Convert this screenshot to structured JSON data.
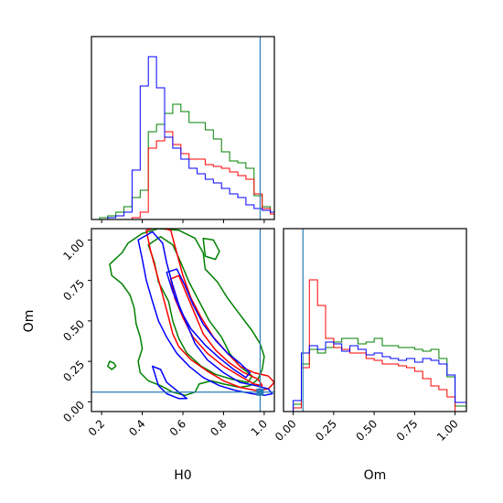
{
  "chart_data": {
    "type": "corner",
    "parameters": [
      "H0",
      "Om"
    ],
    "colors": {
      "green": "#008000",
      "red": "#ff0000",
      "blue": "#0000ff",
      "truth": "#2a7bb5"
    },
    "truth": {
      "H0": 0.98,
      "Om": 0.06
    },
    "h0_axis": {
      "xlabel": "H0",
      "xlim": [
        0.15,
        1.05
      ],
      "ticks": [
        0.2,
        0.4,
        0.6,
        0.8,
        1.0
      ],
      "tick_labels": [
        "0.2",
        "0.4",
        "0.6",
        "0.8",
        "1.0"
      ]
    },
    "om_axis": {
      "label": "Om",
      "lim": [
        -0.06,
        1.07
      ],
      "ticks": [
        0.0,
        0.25,
        0.5,
        0.75,
        1.0
      ],
      "tick_labels": [
        "0.00",
        "0.25",
        "0.50",
        "0.75",
        "1.00"
      ]
    },
    "hist_H0": {
      "bin_edges": [
        0.15,
        0.19,
        0.23,
        0.27,
        0.31,
        0.35,
        0.39,
        0.43,
        0.47,
        0.51,
        0.55,
        0.59,
        0.63,
        0.67,
        0.71,
        0.75,
        0.79,
        0.83,
        0.87,
        0.91,
        0.95,
        0.99,
        1.03,
        1.05
      ],
      "ymax": 1.0,
      "series": [
        {
          "name": "",
          "color": "#008000",
          "values": [
            0,
            0.01,
            0.02,
            0.04,
            0.07,
            0.12,
            0.16,
            0.48,
            0.52,
            0.58,
            0.63,
            0.59,
            0.53,
            0.53,
            0.49,
            0.44,
            0.37,
            0.32,
            0.31,
            0.28,
            0.13,
            0.07,
            0.04
          ]
        },
        {
          "name": "",
          "color": "#ff0000",
          "values": [
            0,
            0,
            0,
            0,
            0,
            0.01,
            0.04,
            0.39,
            0.43,
            0.48,
            0.41,
            0.36,
            0.33,
            0.33,
            0.3,
            0.29,
            0.28,
            0.26,
            0.24,
            0.22,
            0.14,
            0.06,
            0.03
          ]
        },
        {
          "name": "",
          "color": "#0000ff",
          "values": [
            0,
            0,
            0.01,
            0.02,
            0.04,
            0.27,
            0.73,
            0.89,
            0.72,
            0.45,
            0.39,
            0.33,
            0.28,
            0.25,
            0.22,
            0.2,
            0.17,
            0.14,
            0.12,
            0.08,
            0.06,
            0.05,
            0.04
          ]
        }
      ]
    },
    "hist_Om": {
      "bin_edges": [
        -0.06,
        0.0,
        0.05,
        0.1,
        0.15,
        0.2,
        0.25,
        0.3,
        0.35,
        0.4,
        0.45,
        0.5,
        0.55,
        0.6,
        0.65,
        0.7,
        0.75,
        0.8,
        0.85,
        0.9,
        0.95,
        1.0,
        1.07
      ],
      "ymax": 1.0,
      "series": [
        {
          "name": "",
          "color": "#008000",
          "values": [
            0,
            0.04,
            0.26,
            0.34,
            0.32,
            0.35,
            0.38,
            0.4,
            0.4,
            0.37,
            0.38,
            0.4,
            0.36,
            0.36,
            0.35,
            0.35,
            0.34,
            0.33,
            0.34,
            0.29,
            0.19,
            0.03
          ]
        },
        {
          "name": "",
          "color": "#ff0000",
          "values": [
            0,
            0.02,
            0.24,
            0.72,
            0.58,
            0.4,
            0.35,
            0.34,
            0.32,
            0.32,
            0.29,
            0.28,
            0.26,
            0.26,
            0.25,
            0.24,
            0.22,
            0.18,
            0.14,
            0.12,
            0.08,
            0.0
          ]
        },
        {
          "name": "",
          "color": "#0000ff",
          "values": [
            0,
            0.06,
            0.32,
            0.36,
            0.34,
            0.38,
            0.37,
            0.33,
            0.36,
            0.34,
            0.31,
            0.32,
            0.3,
            0.29,
            0.28,
            0.29,
            0.27,
            0.29,
            0.28,
            0.26,
            0.2,
            0.05
          ]
        }
      ]
    },
    "contours": [
      {
        "color": "#008000",
        "level": "outer",
        "points": [
          [
            0.33,
            0.98
          ],
          [
            0.3,
            0.92
          ],
          [
            0.24,
            0.85
          ],
          [
            0.25,
            0.78
          ],
          [
            0.3,
            0.73
          ],
          [
            0.34,
            0.66
          ],
          [
            0.36,
            0.58
          ],
          [
            0.37,
            0.48
          ],
          [
            0.39,
            0.4
          ],
          [
            0.4,
            0.33
          ],
          [
            0.38,
            0.25
          ],
          [
            0.39,
            0.18
          ],
          [
            0.43,
            0.13
          ],
          [
            0.49,
            0.1
          ],
          [
            0.55,
            0.06
          ],
          [
            0.61,
            0.04
          ],
          [
            0.66,
            0.06
          ],
          [
            0.68,
            0.11
          ],
          [
            0.74,
            0.13
          ],
          [
            0.8,
            0.11
          ],
          [
            0.88,
            0.09
          ],
          [
            0.93,
            0.1
          ],
          [
            0.97,
            0.14
          ],
          [
            0.99,
            0.2
          ],
          [
            1.0,
            0.28
          ],
          [
            0.98,
            0.36
          ],
          [
            0.94,
            0.44
          ],
          [
            0.88,
            0.54
          ],
          [
            0.82,
            0.64
          ],
          [
            0.77,
            0.74
          ],
          [
            0.71,
            0.82
          ],
          [
            0.7,
            0.92
          ],
          [
            0.66,
            1.01
          ],
          [
            0.58,
            1.06
          ],
          [
            0.48,
            1.07
          ],
          [
            0.4,
            1.04
          ],
          [
            0.33,
            0.98
          ]
        ]
      },
      {
        "color": "#008000",
        "level": "island",
        "points": [
          [
            0.24,
            0.25
          ],
          [
            0.26,
            0.24
          ],
          [
            0.27,
            0.22
          ],
          [
            0.25,
            0.2
          ],
          [
            0.23,
            0.22
          ],
          [
            0.24,
            0.25
          ]
        ]
      },
      {
        "color": "#008000",
        "level": "island",
        "points": [
          [
            0.7,
            1.01
          ],
          [
            0.75,
            1.0
          ],
          [
            0.78,
            0.93
          ],
          [
            0.76,
            0.88
          ],
          [
            0.71,
            0.9
          ],
          [
            0.7,
            1.01
          ]
        ]
      },
      {
        "color": "#008000",
        "level": "inner",
        "points": [
          [
            0.43,
            0.97
          ],
          [
            0.46,
            0.86
          ],
          [
            0.48,
            0.74
          ],
          [
            0.53,
            0.62
          ],
          [
            0.55,
            0.5
          ],
          [
            0.58,
            0.39
          ],
          [
            0.62,
            0.3
          ],
          [
            0.69,
            0.22
          ],
          [
            0.76,
            0.17
          ],
          [
            0.84,
            0.14
          ],
          [
            0.92,
            0.12
          ],
          [
            0.94,
            0.16
          ],
          [
            0.88,
            0.22
          ],
          [
            0.83,
            0.3
          ],
          [
            0.79,
            0.4
          ],
          [
            0.73,
            0.5
          ],
          [
            0.68,
            0.62
          ],
          [
            0.63,
            0.74
          ],
          [
            0.59,
            0.86
          ],
          [
            0.55,
            0.97
          ],
          [
            0.49,
            1.02
          ],
          [
            0.43,
            0.97
          ]
        ]
      },
      {
        "color": "#ff0000",
        "level": "outer",
        "points": [
          [
            0.42,
            1.06
          ],
          [
            0.44,
            0.94
          ],
          [
            0.47,
            0.8
          ],
          [
            0.5,
            0.66
          ],
          [
            0.53,
            0.52
          ],
          [
            0.55,
            0.42
          ],
          [
            0.58,
            0.34
          ],
          [
            0.64,
            0.26
          ],
          [
            0.72,
            0.19
          ],
          [
            0.8,
            0.13
          ],
          [
            0.88,
            0.09
          ],
          [
            0.96,
            0.07
          ],
          [
            1.02,
            0.08
          ],
          [
            1.05,
            0.12
          ],
          [
            1.02,
            0.16
          ],
          [
            0.95,
            0.18
          ],
          [
            0.88,
            0.22
          ],
          [
            0.82,
            0.3
          ],
          [
            0.75,
            0.4
          ],
          [
            0.69,
            0.52
          ],
          [
            0.64,
            0.64
          ],
          [
            0.6,
            0.78
          ],
          [
            0.57,
            0.92
          ],
          [
            0.54,
            1.06
          ],
          [
            0.48,
            1.08
          ],
          [
            0.42,
            1.06
          ]
        ]
      },
      {
        "color": "#ff0000",
        "level": "inner",
        "points": [
          [
            0.54,
            0.76
          ],
          [
            0.56,
            0.64
          ],
          [
            0.6,
            0.52
          ],
          [
            0.65,
            0.4
          ],
          [
            0.72,
            0.3
          ],
          [
            0.8,
            0.22
          ],
          [
            0.88,
            0.16
          ],
          [
            0.95,
            0.11
          ],
          [
            0.99,
            0.1
          ],
          [
            0.97,
            0.14
          ],
          [
            0.9,
            0.18
          ],
          [
            0.83,
            0.24
          ],
          [
            0.76,
            0.32
          ],
          [
            0.7,
            0.42
          ],
          [
            0.66,
            0.54
          ],
          [
            0.62,
            0.66
          ],
          [
            0.58,
            0.78
          ],
          [
            0.54,
            0.76
          ]
        ]
      },
      {
        "color": "#0000ff",
        "level": "outer",
        "points": [
          [
            0.38,
            1.0
          ],
          [
            0.4,
            0.88
          ],
          [
            0.42,
            0.75
          ],
          [
            0.45,
            0.62
          ],
          [
            0.48,
            0.5
          ],
          [
            0.52,
            0.4
          ],
          [
            0.57,
            0.3
          ],
          [
            0.63,
            0.22
          ],
          [
            0.7,
            0.15
          ],
          [
            0.78,
            0.1
          ],
          [
            0.86,
            0.07
          ],
          [
            0.94,
            0.05
          ],
          [
            1.0,
            0.04
          ],
          [
            1.04,
            0.05
          ],
          [
            1.02,
            0.08
          ],
          [
            0.96,
            0.1
          ],
          [
            0.88,
            0.12
          ],
          [
            0.8,
            0.18
          ],
          [
            0.72,
            0.26
          ],
          [
            0.66,
            0.36
          ],
          [
            0.62,
            0.48
          ],
          [
            0.58,
            0.6
          ],
          [
            0.55,
            0.72
          ],
          [
            0.52,
            0.86
          ],
          [
            0.5,
            0.98
          ],
          [
            0.45,
            1.05
          ],
          [
            0.38,
            1.0
          ]
        ]
      },
      {
        "color": "#0000ff",
        "level": "inner",
        "points": [
          [
            0.52,
            0.8
          ],
          [
            0.55,
            0.68
          ],
          [
            0.59,
            0.56
          ],
          [
            0.64,
            0.45
          ],
          [
            0.71,
            0.35
          ],
          [
            0.78,
            0.27
          ],
          [
            0.85,
            0.2
          ],
          [
            0.91,
            0.15
          ],
          [
            0.93,
            0.18
          ],
          [
            0.88,
            0.24
          ],
          [
            0.82,
            0.3
          ],
          [
            0.76,
            0.38
          ],
          [
            0.7,
            0.48
          ],
          [
            0.65,
            0.6
          ],
          [
            0.61,
            0.72
          ],
          [
            0.57,
            0.82
          ],
          [
            0.52,
            0.8
          ]
        ]
      },
      {
        "color": "#0000ff",
        "level": "island",
        "points": [
          [
            0.45,
            0.22
          ],
          [
            0.48,
            0.1
          ],
          [
            0.52,
            0.05
          ],
          [
            0.58,
            0.02
          ],
          [
            0.62,
            0.02
          ],
          [
            0.58,
            0.06
          ],
          [
            0.52,
            0.12
          ],
          [
            0.49,
            0.2
          ],
          [
            0.45,
            0.22
          ]
        ]
      }
    ]
  }
}
